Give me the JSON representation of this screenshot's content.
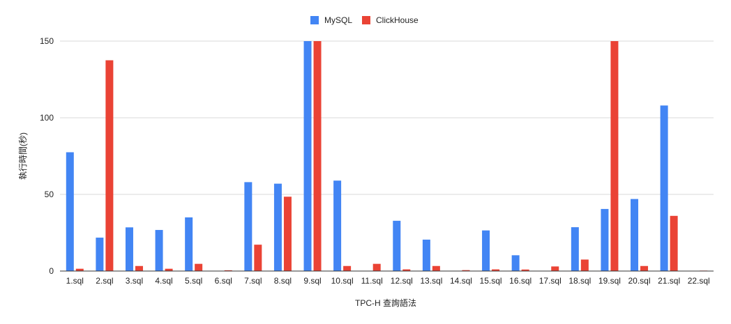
{
  "chart_data": {
    "type": "bar",
    "xlabel": "TPC-H 查詢語法",
    "ylabel": "執行時間(秒)",
    "ylim": [
      0,
      150
    ],
    "yticks": [
      0,
      50,
      100,
      150
    ],
    "grid": true,
    "legend_position": "top-center",
    "categories": [
      "1.sql",
      "2.sql",
      "3.sql",
      "4.sql",
      "5.sql",
      "6.sql",
      "7.sql",
      "8.sql",
      "9.sql",
      "10.sql",
      "11.sql",
      "12.sql",
      "13.sql",
      "14.sql",
      "15.sql",
      "16.sql",
      "17.sql",
      "18.sql",
      "19.sql",
      "20.sql",
      "21.sql",
      "22.sql"
    ],
    "series": [
      {
        "name": "MySQL",
        "color": "#4285f4",
        "values": [
          77.5,
          21.8,
          28.5,
          26.8,
          35,
          0,
          58,
          57,
          150,
          59,
          0,
          32.8,
          20.5,
          0,
          26.5,
          10.3,
          0,
          28.6,
          40.5,
          47,
          108,
          0
        ]
      },
      {
        "name": "ClickHouse",
        "color": "#ea4335",
        "values": [
          1.5,
          137.5,
          3.3,
          1.5,
          4.7,
          0.5,
          17.2,
          48.5,
          150,
          3.3,
          4.7,
          1.1,
          3.3,
          0.6,
          1.1,
          1.0,
          3.0,
          7.5,
          150,
          3.3,
          36,
          0.3
        ]
      }
    ]
  }
}
